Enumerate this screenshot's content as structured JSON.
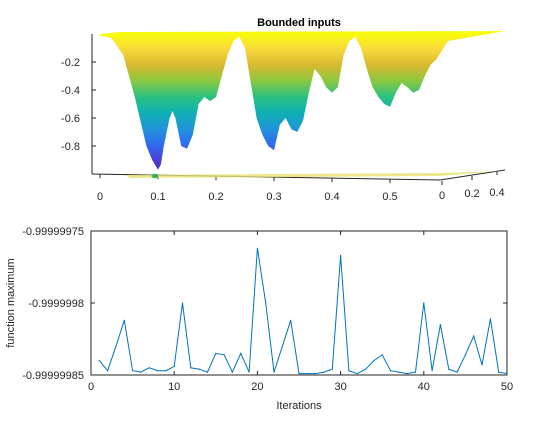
{
  "figure": {
    "background": "#ffffff"
  },
  "chart_data": [
    {
      "type": "surface",
      "title": "Bounded inputs",
      "x_ticks": [
        "0",
        "0.1",
        "0.2",
        "0.3",
        "0.4",
        "0.5"
      ],
      "y_ticks": [
        "0",
        "0.2",
        "0.4"
      ],
      "z_ticks": [
        "-0.2",
        "-0.4",
        "-0.6",
        "-0.8"
      ],
      "z_range": [
        -1,
        0
      ],
      "x_range": [
        0,
        0.6
      ],
      "profile_x": [
        0.0,
        0.02,
        0.04,
        0.06,
        0.08,
        0.09,
        0.1,
        0.105,
        0.11,
        0.12,
        0.125,
        0.13,
        0.14,
        0.15,
        0.16,
        0.17,
        0.18,
        0.19,
        0.2,
        0.21,
        0.22,
        0.23,
        0.24,
        0.25,
        0.26,
        0.27,
        0.28,
        0.29,
        0.3,
        0.31,
        0.32,
        0.33,
        0.34,
        0.35,
        0.36,
        0.37,
        0.38,
        0.39,
        0.4,
        0.41,
        0.42,
        0.43,
        0.44,
        0.45,
        0.46,
        0.47,
        0.48,
        0.49,
        0.5,
        0.51,
        0.52,
        0.53,
        0.54,
        0.55,
        0.56,
        0.57,
        0.58,
        0.6
      ],
      "profile_z": [
        -0.01,
        -0.03,
        -0.15,
        -0.45,
        -0.8,
        -0.9,
        -0.97,
        -0.93,
        -0.8,
        -0.6,
        -0.55,
        -0.6,
        -0.8,
        -0.82,
        -0.72,
        -0.5,
        -0.45,
        -0.48,
        -0.45,
        -0.3,
        -0.15,
        -0.05,
        -0.02,
        -0.1,
        -0.35,
        -0.6,
        -0.72,
        -0.8,
        -0.83,
        -0.65,
        -0.6,
        -0.68,
        -0.7,
        -0.62,
        -0.42,
        -0.25,
        -0.3,
        -0.38,
        -0.42,
        -0.38,
        -0.15,
        -0.05,
        -0.02,
        -0.1,
        -0.25,
        -0.38,
        -0.45,
        -0.5,
        -0.52,
        -0.42,
        -0.35,
        -0.38,
        -0.42,
        -0.4,
        -0.3,
        -0.22,
        -0.18,
        -0.05
      ],
      "colormap": [
        "#3e26a8",
        "#4a42d9",
        "#2e6ff0",
        "#1e97d6",
        "#0fb1b0",
        "#2ec27e",
        "#8cc83f",
        "#d8b92e",
        "#f7d83b",
        "#f9fb0e"
      ]
    },
    {
      "type": "line",
      "xlabel": "Iterations",
      "ylabel": "function maximum",
      "xlim": [
        0,
        50
      ],
      "ylim": [
        -0.99999985,
        -0.99999975
      ],
      "x_ticks": [
        "0",
        "10",
        "20",
        "30",
        "40",
        "50"
      ],
      "y_ticks": [
        "-0.99999975",
        "-0.9999998",
        "-0.99999985"
      ],
      "x": [
        1,
        2,
        3,
        4,
        5,
        6,
        7,
        8,
        9,
        10,
        11,
        12,
        13,
        14,
        15,
        16,
        17,
        18,
        19,
        20,
        21,
        22,
        23,
        24,
        25,
        26,
        27,
        28,
        29,
        30,
        31,
        32,
        33,
        34,
        35,
        36,
        37,
        38,
        39,
        40,
        41,
        42,
        43,
        44,
        45,
        46,
        47,
        48,
        49,
        50
      ],
      "y": [
        -0.99999984,
        -0.999999847,
        -0.99999983,
        -0.999999812,
        -0.999999847,
        -0.999999848,
        -0.999999845,
        -0.999999847,
        -0.999999847,
        -0.999999844,
        -0.9999998,
        -0.999999845,
        -0.999999846,
        -0.999999848,
        -0.999999835,
        -0.999999836,
        -0.999999848,
        -0.999999835,
        -0.999999848,
        -0.999999762,
        -0.9999998,
        -0.999999848,
        -0.99999983,
        -0.999999812,
        -0.999999849,
        -0.999999849,
        -0.999999849,
        -0.999999848,
        -0.999999846,
        -0.999999767,
        -0.999999847,
        -0.999999849,
        -0.999999846,
        -0.99999984,
        -0.999999836,
        -0.999999847,
        -0.999999848,
        -0.999999849,
        -0.999999848,
        -0.9999998,
        -0.999999847,
        -0.999999815,
        -0.999999846,
        -0.999999848,
        -0.999999836,
        -0.999999823,
        -0.999999843,
        -0.999999811,
        -0.999999848,
        -0.999999849
      ],
      "line_color": "#0072bd"
    }
  ]
}
